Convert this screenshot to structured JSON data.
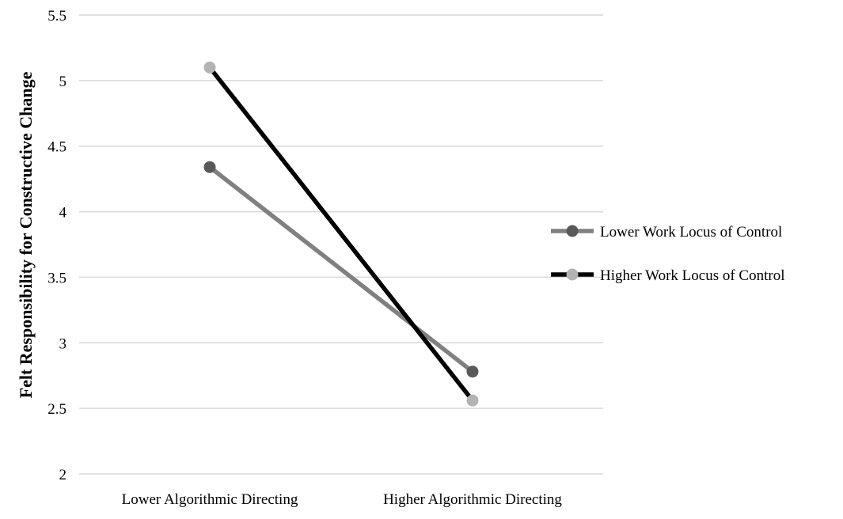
{
  "chart_data": {
    "type": "line",
    "title": "",
    "xlabel": "",
    "ylabel": "Felt Responsibility for Constructive Change",
    "categories": [
      "Lower Algorithmic Directing",
      "Higher Algorithmic Directing"
    ],
    "yticks": [
      "2",
      "2.5",
      "3",
      "3.5",
      "4",
      "4.5",
      "5",
      "5.5"
    ],
    "ylim": [
      2,
      5.5
    ],
    "grid": true,
    "legend_position": "right",
    "series": [
      {
        "name": "Lower Work Locus of Control",
        "values": [
          4.34,
          2.78
        ],
        "line_color": "#808080",
        "marker_color": "#595959"
      },
      {
        "name": "Higher Work Locus of Control",
        "values": [
          5.1,
          2.56
        ],
        "line_color": "#000000",
        "marker_color": "#b3b3b3"
      }
    ]
  }
}
